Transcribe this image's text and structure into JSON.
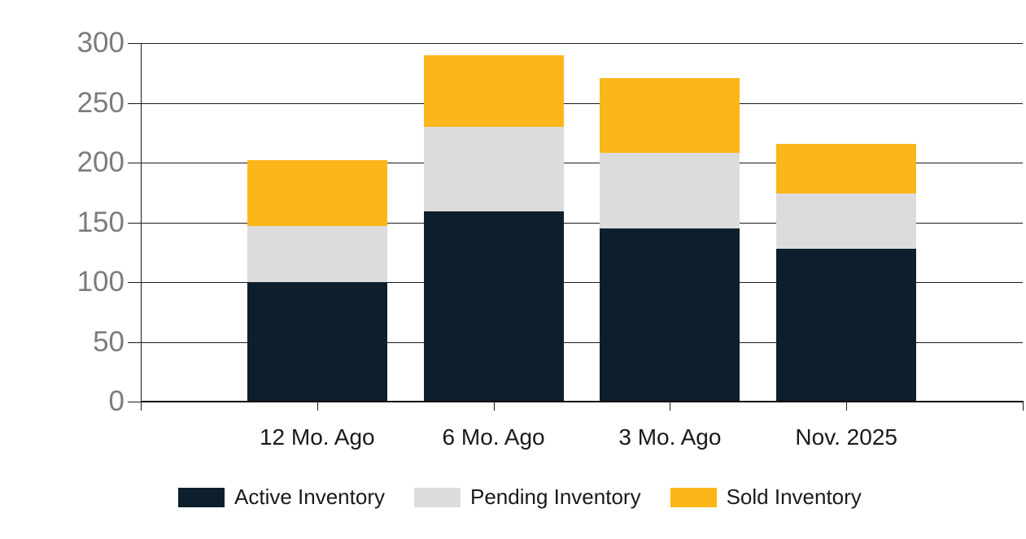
{
  "chart_data": {
    "type": "bar",
    "stacked": true,
    "title": "",
    "xlabel": "",
    "ylabel": "",
    "categories": [
      "12 Mo. Ago",
      "6 Mo. Ago",
      "3 Mo. Ago",
      "Nov. 2025"
    ],
    "series": [
      {
        "name": "Active Inventory",
        "color": "#0D1F2C",
        "values": [
          100,
          159,
          145,
          128
        ]
      },
      {
        "name": "Pending Inventory",
        "color": "#DCDCDC",
        "values": [
          47,
          71,
          63,
          46
        ]
      },
      {
        "name": "Sold Inventory",
        "color": "#FBB619",
        "values": [
          55,
          60,
          63,
          42
        ]
      }
    ],
    "stack_totals": [
      202,
      290,
      271,
      216
    ],
    "ylim": [
      0,
      300
    ],
    "yticks": [
      0,
      50,
      100,
      150,
      200,
      250,
      300
    ],
    "grid": true,
    "legend_position": "bottom"
  },
  "legend": {
    "items": [
      {
        "label": "Active Inventory",
        "color": "#0D1F2C"
      },
      {
        "label": "Pending Inventory",
        "color": "#DCDCDC"
      },
      {
        "label": "Sold Inventory",
        "color": "#FBB619"
      }
    ]
  },
  "colors": {
    "background": "#FFFFFF",
    "grid_line": "#1A1A1A",
    "axis_line": "#111111",
    "y_tick_label": "#7C7C7C",
    "x_tick_label": "#1A1A1A",
    "legend_label": "#1A1A1A"
  }
}
